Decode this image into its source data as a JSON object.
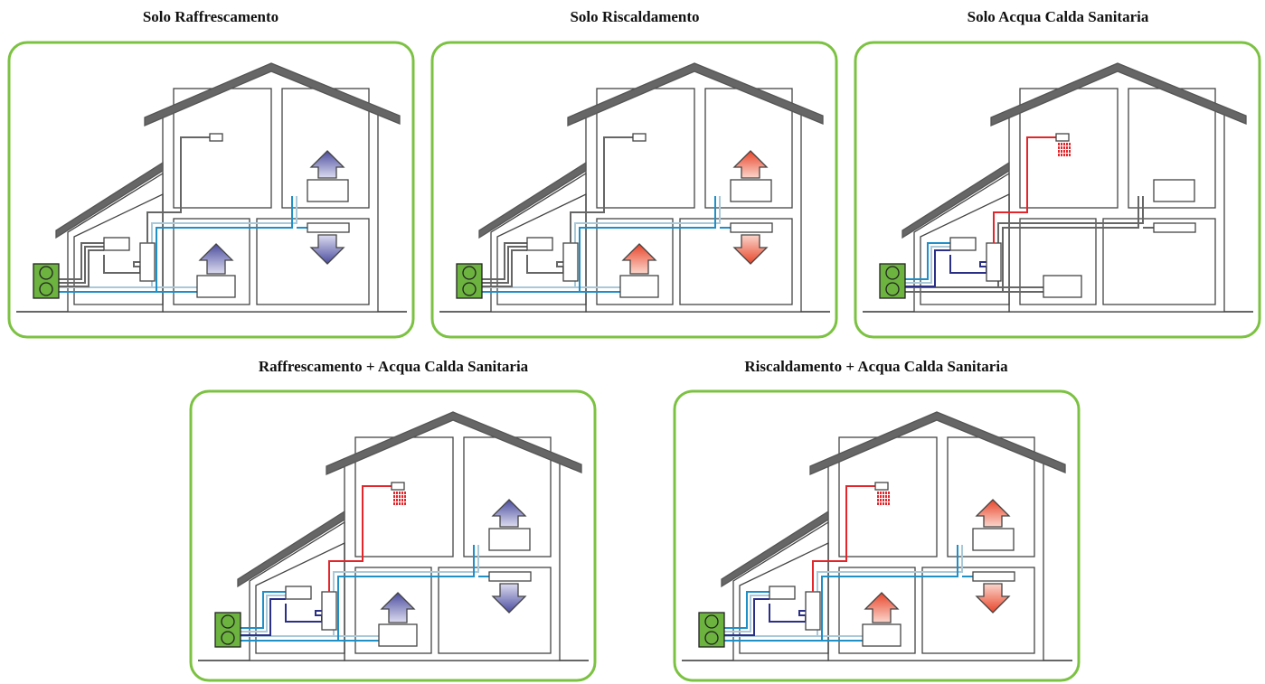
{
  "panels": [
    {
      "title": "Solo Raffrescamento"
    },
    {
      "title": "Solo Riscaldamento"
    },
    {
      "title": "Solo Acqua Calda Sanitaria"
    },
    {
      "title": "Raffrescamento + Acqua Calda Sanitaria"
    },
    {
      "title": "Riscaldamento + Acqua Calda Sanitaria"
    }
  ]
}
